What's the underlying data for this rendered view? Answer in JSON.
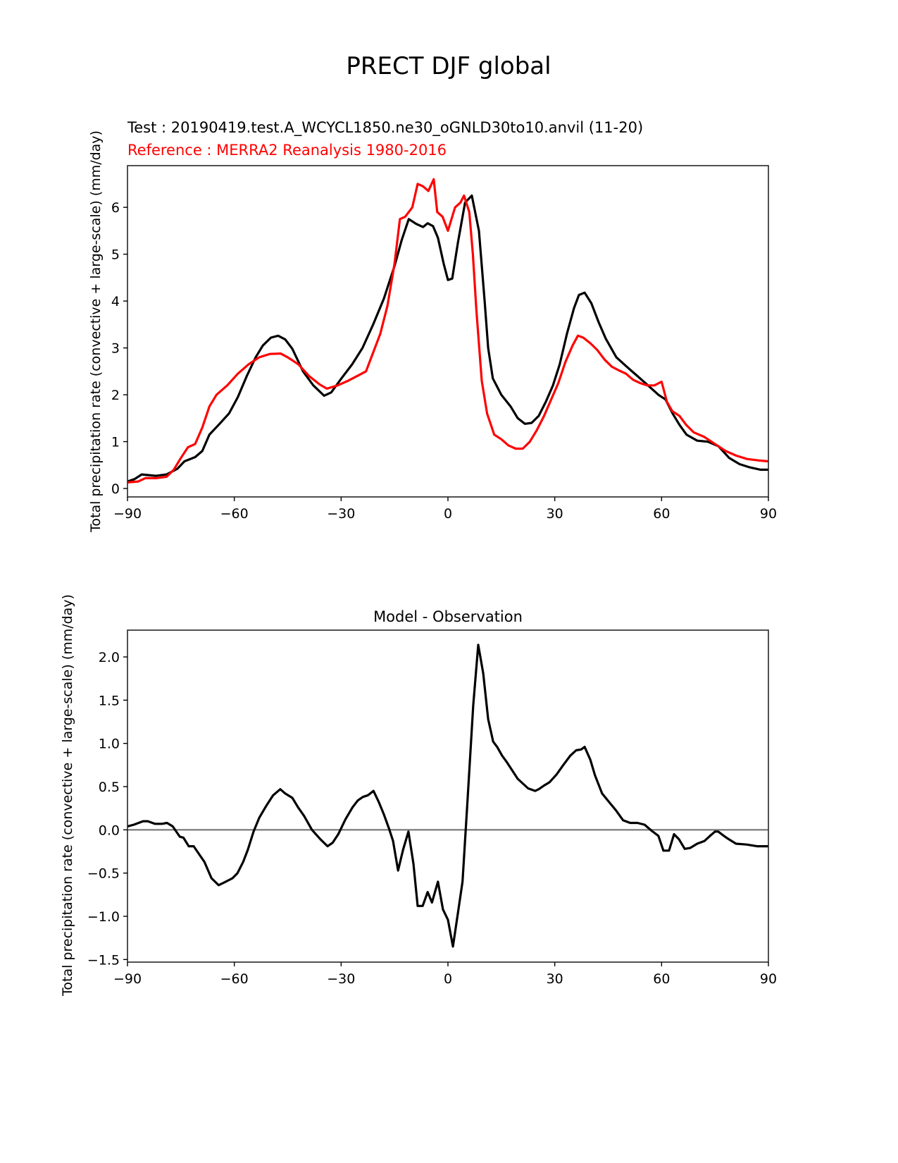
{
  "title": "PRECT DJF global",
  "colors": {
    "test": "#000000",
    "reference": "#ff0000",
    "zero_line": "#808080"
  },
  "chart_data": [
    {
      "type": "line",
      "test_label": "Test : 20190419.test.A_WCYCL1850.ne30_oGNLD30to10.anvil (11-20)",
      "reference_label": "Reference : MERRA2 Reanalysis 1980-2016",
      "xlabel": "",
      "ylabel": "Total precipitation rate (convective + large-scale) (mm/day)",
      "xlim": [
        -90,
        90
      ],
      "ylim": [
        -0.18,
        6.89
      ],
      "xticks": [
        -90,
        -60,
        -30,
        0,
        30,
        60,
        90
      ],
      "xtick_labels": [
        "−90",
        "−60",
        "−30",
        "0",
        "30",
        "60",
        "90"
      ],
      "yticks": [
        0,
        1,
        2,
        3,
        4,
        5,
        6
      ],
      "ytick_labels": [
        "0",
        "1",
        "2",
        "3",
        "4",
        "5",
        "6"
      ],
      "series": [
        {
          "name": "test",
          "color": "#000000",
          "x": [
            -90,
            -88,
            -86,
            -82,
            -79,
            -76,
            -74,
            -71,
            -69,
            -67,
            -64.5,
            -61.5,
            -59,
            -56.5,
            -54,
            -52,
            -49.7,
            -47.7,
            -45.7,
            -43.7,
            -40.7,
            -37.8,
            -34.8,
            -32.8,
            -29.9,
            -26.9,
            -24,
            -21,
            -18,
            -15,
            -13,
            -11,
            -9,
            -7,
            -5.7,
            -4.2,
            -2.8,
            -1.2,
            0,
            1.2,
            2.8,
            4.8,
            6.7,
            8.7,
            10.3,
            11.3,
            12.6,
            15,
            17.6,
            19.6,
            21.6,
            23.5,
            25.5,
            27.5,
            29.5,
            31.4,
            33.4,
            35.4,
            36.8,
            38.4,
            40.3,
            42.3,
            44.3,
            47.3,
            50.2,
            53.2,
            56.2,
            59.1,
            61.1,
            63.1,
            65.1,
            67,
            70,
            73,
            76,
            79,
            81.9,
            84.8,
            87.8,
            90
          ],
          "y": [
            0.15,
            0.2,
            0.3,
            0.27,
            0.3,
            0.42,
            0.58,
            0.67,
            0.8,
            1.15,
            1.35,
            1.6,
            1.95,
            2.4,
            2.8,
            3.05,
            3.22,
            3.26,
            3.18,
            2.98,
            2.5,
            2.2,
            1.98,
            2.05,
            2.35,
            2.65,
            3.0,
            3.5,
            4.05,
            4.75,
            5.3,
            5.75,
            5.65,
            5.58,
            5.66,
            5.6,
            5.35,
            4.8,
            4.45,
            4.48,
            5.25,
            6.1,
            6.25,
            5.5,
            4.0,
            3.0,
            2.35,
            2.0,
            1.75,
            1.5,
            1.38,
            1.4,
            1.55,
            1.85,
            2.2,
            2.65,
            3.3,
            3.85,
            4.13,
            4.18,
            3.95,
            3.55,
            3.2,
            2.8,
            2.6,
            2.4,
            2.2,
            2.0,
            1.9,
            1.6,
            1.35,
            1.15,
            1.02,
            1.0,
            0.9,
            0.65,
            0.52,
            0.45,
            0.4,
            0.4
          ]
        },
        {
          "name": "reference",
          "color": "#ff0000",
          "x": [
            -90,
            -87,
            -85,
            -82,
            -79,
            -77,
            -75,
            -73,
            -71,
            -69,
            -67,
            -65,
            -62,
            -59,
            -56,
            -53,
            -50,
            -47,
            -45,
            -42,
            -39,
            -36,
            -34,
            -31,
            -28,
            -25,
            -23,
            -21,
            -19,
            -17,
            -15,
            -13.5,
            -12,
            -10,
            -8.5,
            -7,
            -5.5,
            -4,
            -3,
            -1.5,
            0,
            2,
            3.5,
            4.5,
            6,
            7,
            8,
            9.5,
            11,
            13,
            15,
            17,
            19,
            21,
            23,
            25,
            27,
            29,
            31,
            33,
            35,
            36.5,
            38,
            40,
            42,
            44,
            46,
            48,
            50,
            52,
            54,
            56,
            58,
            60,
            61.5,
            63,
            65,
            67,
            69,
            72,
            75,
            78,
            81,
            84,
            87,
            90
          ],
          "y": [
            0.13,
            0.15,
            0.22,
            0.22,
            0.25,
            0.4,
            0.65,
            0.88,
            0.95,
            1.3,
            1.75,
            2.0,
            2.2,
            2.45,
            2.65,
            2.8,
            2.87,
            2.88,
            2.8,
            2.65,
            2.4,
            2.22,
            2.13,
            2.2,
            2.3,
            2.42,
            2.5,
            2.9,
            3.3,
            3.9,
            4.8,
            5.75,
            5.8,
            6.0,
            6.5,
            6.45,
            6.35,
            6.6,
            5.9,
            5.8,
            5.5,
            6.0,
            6.1,
            6.25,
            5.9,
            5.0,
            3.8,
            2.3,
            1.6,
            1.15,
            1.05,
            0.92,
            0.85,
            0.85,
            1.0,
            1.25,
            1.55,
            1.9,
            2.25,
            2.7,
            3.05,
            3.26,
            3.22,
            3.1,
            2.95,
            2.75,
            2.6,
            2.52,
            2.45,
            2.32,
            2.25,
            2.2,
            2.2,
            2.28,
            1.85,
            1.65,
            1.55,
            1.35,
            1.2,
            1.1,
            0.95,
            0.8,
            0.7,
            0.63,
            0.6,
            0.58
          ]
        }
      ]
    },
    {
      "type": "line",
      "title": "Model - Observation",
      "xlabel": "",
      "ylabel": "Total precipitation rate (convective + large-scale) (mm/day)",
      "xlim": [
        -90,
        90
      ],
      "ylim": [
        -1.53,
        2.31
      ],
      "xticks": [
        -90,
        -60,
        -30,
        0,
        30,
        60,
        90
      ],
      "xtick_labels": [
        "−90",
        "−60",
        "−30",
        "0",
        "30",
        "60",
        "90"
      ],
      "yticks": [
        -1.5,
        -1.0,
        -0.5,
        0.0,
        0.5,
        1.0,
        1.5,
        2.0
      ],
      "ytick_labels": [
        "−1.5",
        "−1.0",
        "−0.5",
        "0.0",
        "0.5",
        "1.0",
        "1.5",
        "2.0"
      ],
      "zero_line": 0,
      "series": [
        {
          "name": "difference",
          "color": "#000000",
          "x": [
            -90,
            -88.2,
            -85.6,
            -84.3,
            -82.3,
            -80.3,
            -78.9,
            -77.3,
            -75.3,
            -74.3,
            -72.8,
            -71.4,
            -69.4,
            -68.4,
            -66.4,
            -64.4,
            -62.9,
            -60.5,
            -59.1,
            -57.5,
            -56.2,
            -54.6,
            -53,
            -51,
            -49.1,
            -47.1,
            -45.7,
            -43.7,
            -42.1,
            -40.4,
            -38.2,
            -35.8,
            -33.8,
            -32.4,
            -30.8,
            -28.8,
            -26.8,
            -25.3,
            -23.9,
            -22.5,
            -20.9,
            -19.4,
            -18,
            -16.6,
            -15.4,
            -14,
            -12.6,
            -11.1,
            -9.7,
            -8.5,
            -7.1,
            -5.7,
            -4.5,
            -2.8,
            -1.4,
            0,
            1.4,
            2.8,
            4.1,
            5.5,
            7.1,
            8.5,
            9.9,
            11.3,
            12.7,
            13.8,
            15.2,
            16.6,
            19.6,
            22.5,
            24.5,
            25.5,
            26.9,
            28.5,
            30.5,
            32.4,
            34.4,
            36,
            37.4,
            38.4,
            40,
            41.3,
            43.3,
            45.3,
            47.3,
            49.2,
            51.2,
            53.2,
            55.2,
            57.2,
            59.1,
            60.5,
            62.1,
            63.5,
            64.9,
            66.5,
            68,
            70,
            72,
            73.6,
            75,
            75.9,
            77.5,
            78.9,
            80.9,
            83.9,
            86.8,
            90
          ],
          "y": [
            0.04,
            0.06,
            0.1,
            0.1,
            0.07,
            0.07,
            0.08,
            0.04,
            -0.08,
            -0.09,
            -0.19,
            -0.19,
            -0.31,
            -0.37,
            -0.56,
            -0.64,
            -0.61,
            -0.56,
            -0.5,
            -0.37,
            -0.23,
            -0.02,
            0.14,
            0.28,
            0.4,
            0.47,
            0.42,
            0.37,
            0.26,
            0.16,
            0,
            -0.11,
            -0.19,
            -0.15,
            -0.05,
            0.12,
            0.26,
            0.34,
            0.38,
            0.4,
            0.45,
            0.32,
            0.18,
            0.02,
            -0.13,
            -0.47,
            -0.23,
            -0.02,
            -0.39,
            -0.88,
            -0.88,
            -0.72,
            -0.84,
            -0.6,
            -0.92,
            -1.04,
            -1.35,
            -0.96,
            -0.6,
            0.34,
            1.44,
            2.14,
            1.81,
            1.28,
            1.02,
            0.96,
            0.86,
            0.78,
            0.59,
            0.48,
            0.45,
            0.47,
            0.51,
            0.55,
            0.64,
            0.75,
            0.86,
            0.92,
            0.93,
            0.96,
            0.81,
            0.63,
            0.42,
            0.32,
            0.22,
            0.11,
            0.08,
            0.08,
            0.06,
            -0.01,
            -0.07,
            -0.24,
            -0.24,
            -0.05,
            -0.11,
            -0.22,
            -0.21,
            -0.16,
            -0.13,
            -0.07,
            -0.02,
            -0.02,
            -0.07,
            -0.11,
            -0.16,
            -0.17,
            -0.19,
            -0.19
          ]
        }
      ]
    }
  ]
}
